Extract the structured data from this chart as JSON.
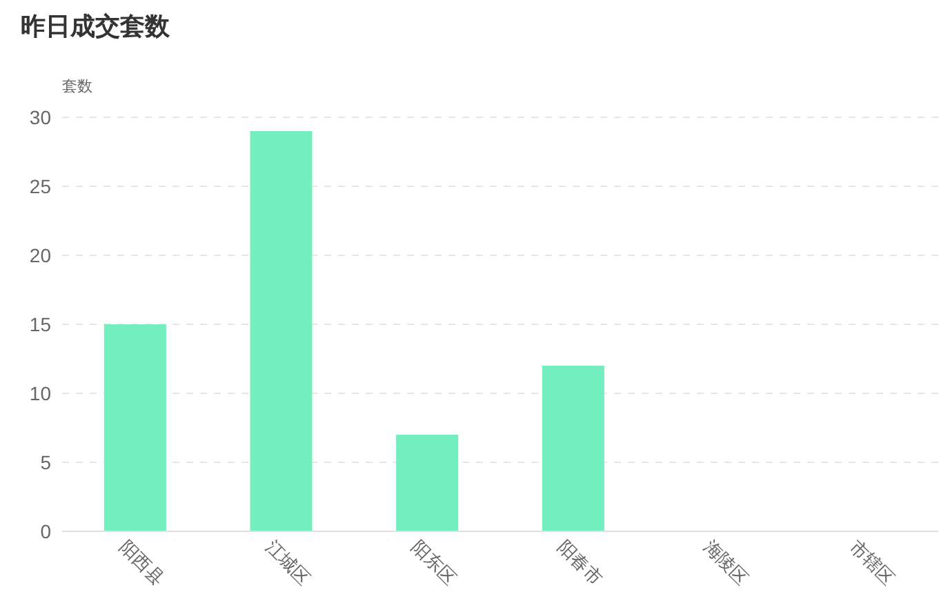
{
  "chart_data": {
    "type": "bar",
    "title": "昨日成交套数",
    "ylabel": "套数",
    "categories": [
      "阳西县",
      "江城区",
      "阳东区",
      "阳春市",
      "海陵区",
      "市辖区"
    ],
    "values": [
      15,
      29,
      7,
      12,
      0,
      0
    ],
    "color": "#72eebf",
    "ylim": [
      0,
      30
    ],
    "yticks": [
      0,
      5,
      10,
      15,
      20,
      25,
      30
    ],
    "grid": "y"
  }
}
